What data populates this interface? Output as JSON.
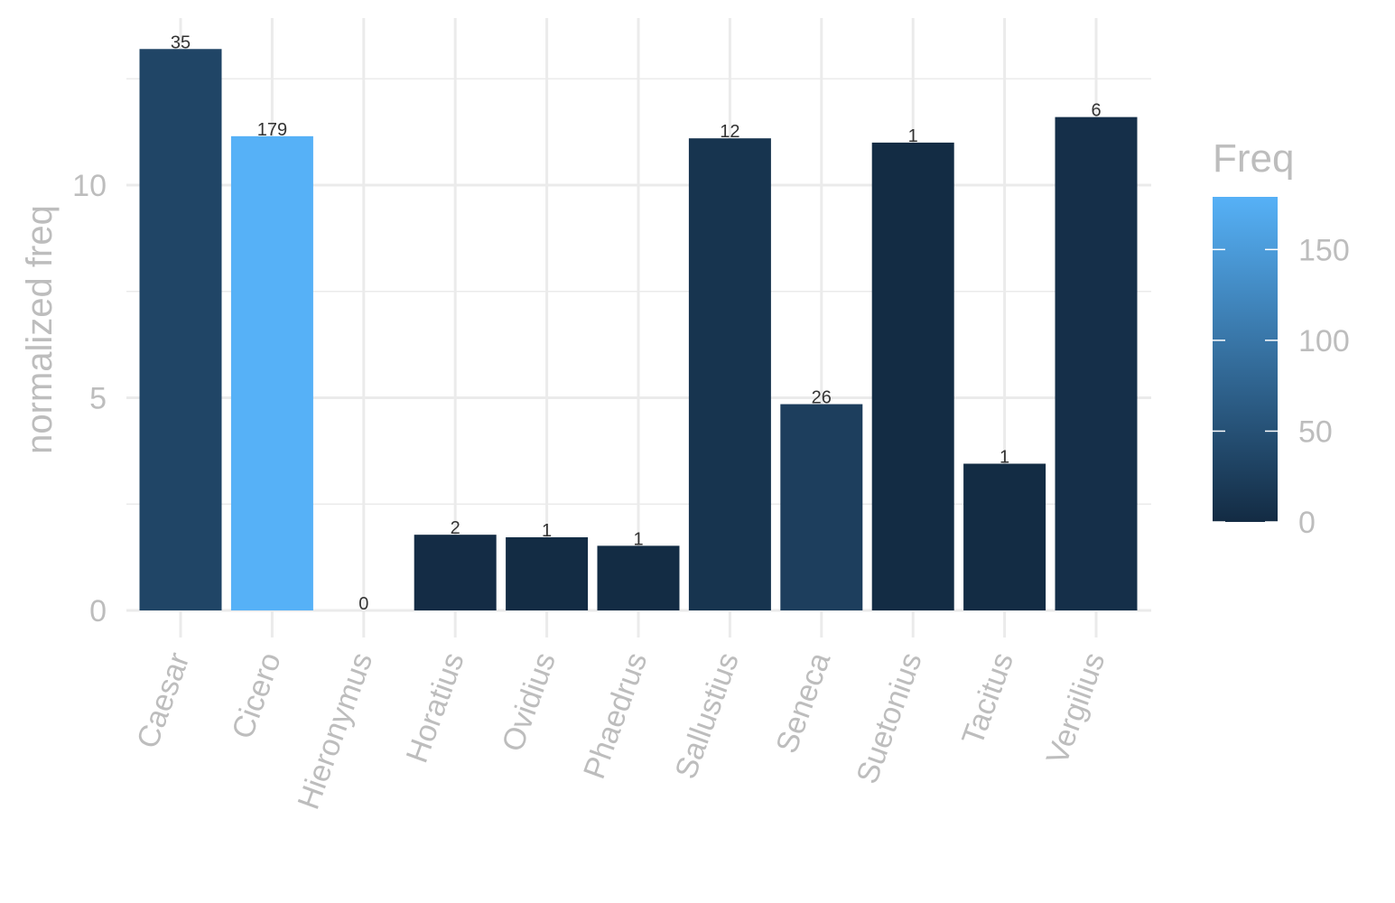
{
  "chart_data": {
    "type": "bar",
    "categories": [
      "Caesar",
      "Cicero",
      "Hieronymus",
      "Horatius",
      "Ovidius",
      "Phaedrus",
      "Sallustius",
      "Seneca",
      "Suetonius",
      "Tacitus",
      "Vergilius"
    ],
    "values": [
      13.2,
      11.15,
      0,
      1.78,
      1.72,
      1.52,
      11.1,
      4.85,
      11.0,
      3.45,
      11.6
    ],
    "freq": [
      35,
      179,
      0,
      2,
      1,
      1,
      12,
      26,
      1,
      1,
      6
    ],
    "data_labels": [
      "35",
      "179",
      "0",
      "2",
      "1",
      "1",
      "12",
      "26",
      "1",
      "1",
      "6"
    ],
    "title": "",
    "xlabel": "",
    "ylabel": "normalized freq",
    "ylim": [
      0,
      13.9
    ],
    "y_ticks": [
      0,
      5,
      10
    ],
    "y_tick_labels": [
      "0",
      "5",
      "10"
    ],
    "grid": true,
    "legend": {
      "title": "Freq",
      "placement": "right",
      "range": [
        0,
        179
      ],
      "ticks": [
        0,
        50,
        100,
        150
      ],
      "tick_labels": [
        "0",
        "50",
        "100",
        "150"
      ],
      "color_low": "#132b43",
      "color_high": "#56b1f7"
    }
  }
}
